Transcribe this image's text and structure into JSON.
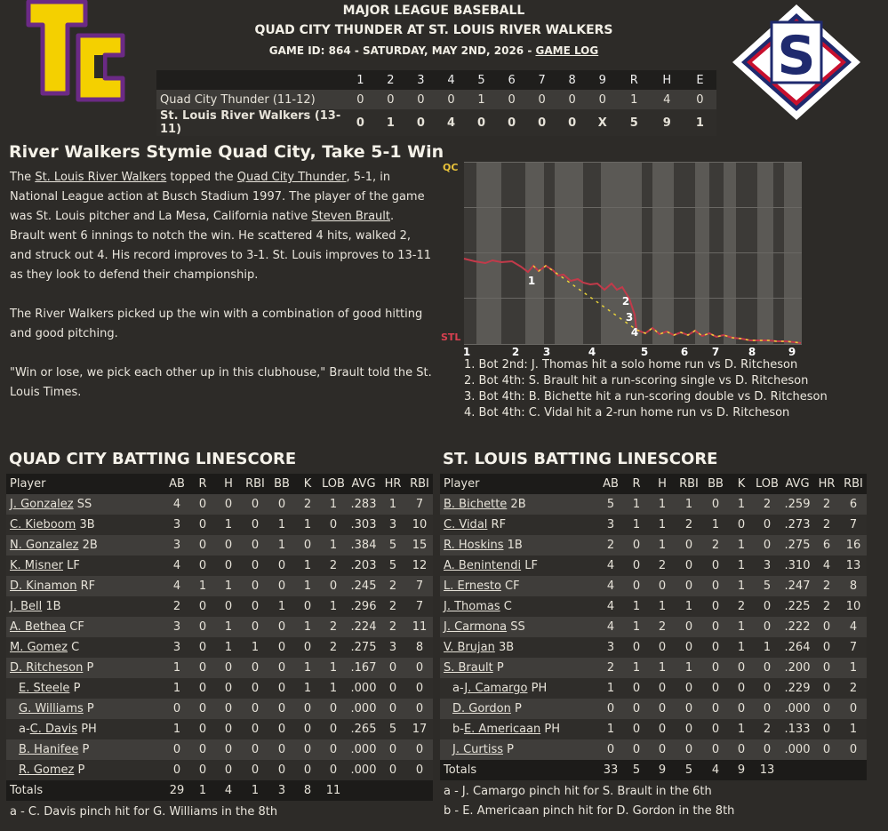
{
  "header": {
    "league": "MAJOR LEAGUE BASEBALL",
    "matchup": "QUAD CITY THUNDER AT ST. LOUIS RIVER WALKERS",
    "game_info": "GAME ID: 864 - SATURDAY, MAY 2ND, 2026 - ",
    "game_log_link": "GAME LOG"
  },
  "logos": {
    "away_letters": "TC",
    "home_letter": "S",
    "colors": {
      "away_primary": "#f4d000",
      "away_outline": "#6b2a85",
      "home_navy": "#1f2a6e",
      "home_red": "#c8102e"
    }
  },
  "linescore": {
    "headers": [
      "",
      "1",
      "2",
      "3",
      "4",
      "5",
      "6",
      "7",
      "8",
      "9",
      "R",
      "H",
      "E"
    ],
    "rows": [
      [
        "Quad City Thunder (11-12)",
        "0",
        "0",
        "0",
        "0",
        "1",
        "0",
        "0",
        "0",
        "0",
        "1",
        "4",
        "0"
      ],
      [
        "St. Louis River Walkers (13-11)",
        "0",
        "1",
        "0",
        "4",
        "0",
        "0",
        "0",
        "0",
        "X",
        "5",
        "9",
        "1"
      ]
    ]
  },
  "article": {
    "title": "River Walkers Stymie Quad City, Take 5-1 Win",
    "p1_a": "The ",
    "p1_link1": "St. Louis River Walkers",
    "p1_b": " topped the ",
    "p1_link2": "Quad City Thunder",
    "p1_c": ", 5-1, in National League action at Busch Stadium 1997. The player of the game was St. Louis pitcher and La Mesa, California native ",
    "p1_link3": "Steven Brault",
    "p1_d": ". Brault went 6 innings to notch the win. He scattered 4 hits, walked 2, and struck out 4. His record improves to 3-1. St. Louis improves to 13-11 as they look to defend their championship.",
    "p2": "The River Walkers picked up the win with a combination of good hitting and good pitching.",
    "p3": "\"Win or lose, we pick each other up in this clubhouse,\" Brault told the St. Louis Times."
  },
  "chart_data": {
    "type": "line",
    "y_top_label": "QC",
    "y_bottom_label": "STL",
    "x_labels": [
      "1",
      "2",
      "3",
      "4",
      "5",
      "6",
      "7",
      "8",
      "9"
    ],
    "markers": [
      "1",
      "2",
      "3",
      "4"
    ],
    "colors": {
      "line_home": "#c23a4a",
      "line_away": "#e8d23a",
      "band": "#5b5955",
      "bg": "#3c3a37"
    }
  },
  "chart_notes": [
    "1. Bot 2nd: J. Thomas hit a solo home run vs D. Ritcheson",
    "2. Bot 4th: S. Brault hit a run-scoring single vs D. Ritcheson",
    "3. Bot 4th: B. Bichette hit a run-scoring double vs D. Ritcheson",
    "4. Bot 4th: C. Vidal hit a 2-run home run vs D. Ritcheson"
  ],
  "qc_batting": {
    "title": "QUAD CITY BATTING LINESCORE",
    "headers": [
      "Player",
      "AB",
      "R",
      "H",
      "RBI",
      "BB",
      "K",
      "LOB",
      "AVG",
      "HR",
      "RBI"
    ],
    "rows": [
      {
        "pre": "",
        "name": "J. Gonzalez",
        "pos": " SS",
        "ind": false,
        "stats": [
          "4",
          "0",
          "0",
          "0",
          "0",
          "2",
          "1",
          ".283",
          "1",
          "7"
        ]
      },
      {
        "pre": "",
        "name": "C. Kieboom",
        "pos": " 3B",
        "ind": false,
        "stats": [
          "3",
          "0",
          "1",
          "0",
          "1",
          "1",
          "0",
          ".303",
          "3",
          "10"
        ]
      },
      {
        "pre": "",
        "name": "N. Gonzalez",
        "pos": " 2B",
        "ind": false,
        "stats": [
          "3",
          "0",
          "0",
          "0",
          "1",
          "0",
          "1",
          ".384",
          "5",
          "15"
        ]
      },
      {
        "pre": "",
        "name": "K. Misner",
        "pos": " LF",
        "ind": false,
        "stats": [
          "4",
          "0",
          "0",
          "0",
          "0",
          "1",
          "2",
          ".203",
          "5",
          "12"
        ]
      },
      {
        "pre": "",
        "name": "D. Kinamon",
        "pos": " RF",
        "ind": false,
        "stats": [
          "4",
          "1",
          "1",
          "0",
          "0",
          "1",
          "0",
          ".245",
          "2",
          "7"
        ]
      },
      {
        "pre": "",
        "name": "J. Bell",
        "pos": " 1B",
        "ind": false,
        "stats": [
          "2",
          "0",
          "0",
          "0",
          "1",
          "0",
          "1",
          ".296",
          "2",
          "7"
        ]
      },
      {
        "pre": "",
        "name": "A. Bethea",
        "pos": " CF",
        "ind": false,
        "stats": [
          "3",
          "0",
          "1",
          "0",
          "0",
          "1",
          "2",
          ".224",
          "2",
          "11"
        ]
      },
      {
        "pre": "",
        "name": "M. Gomez",
        "pos": " C",
        "ind": false,
        "stats": [
          "3",
          "0",
          "1",
          "1",
          "0",
          "0",
          "2",
          ".275",
          "3",
          "8"
        ]
      },
      {
        "pre": "",
        "name": "D. Ritcheson",
        "pos": " P",
        "ind": false,
        "stats": [
          "1",
          "0",
          "0",
          "0",
          "0",
          "1",
          "1",
          ".167",
          "0",
          "0"
        ]
      },
      {
        "pre": "",
        "name": "E. Steele",
        "pos": " P",
        "ind": true,
        "stats": [
          "1",
          "0",
          "0",
          "0",
          "0",
          "1",
          "1",
          ".000",
          "0",
          "0"
        ]
      },
      {
        "pre": "",
        "name": "G. Williams",
        "pos": " P",
        "ind": true,
        "stats": [
          "0",
          "0",
          "0",
          "0",
          "0",
          "0",
          "0",
          ".000",
          "0",
          "0"
        ]
      },
      {
        "pre": "a-",
        "name": "C. Davis",
        "pos": " PH",
        "ind": true,
        "stats": [
          "1",
          "0",
          "0",
          "0",
          "0",
          "0",
          "0",
          ".265",
          "5",
          "17"
        ]
      },
      {
        "pre": "",
        "name": "B. Hanifee",
        "pos": " P",
        "ind": true,
        "stats": [
          "0",
          "0",
          "0",
          "0",
          "0",
          "0",
          "0",
          ".000",
          "0",
          "0"
        ]
      },
      {
        "pre": "",
        "name": "R. Gomez",
        "pos": " P",
        "ind": true,
        "stats": [
          "0",
          "0",
          "0",
          "0",
          "0",
          "0",
          "0",
          ".000",
          "0",
          "0"
        ]
      }
    ],
    "totals": [
      "Totals",
      "29",
      "1",
      "4",
      "1",
      "3",
      "8",
      "11",
      "",
      "",
      ""
    ],
    "footnotes": [
      "a - C. Davis pinch hit for G. Williams in the 8th"
    ]
  },
  "stl_batting": {
    "title": "ST. LOUIS BATTING LINESCORE",
    "headers": [
      "Player",
      "AB",
      "R",
      "H",
      "RBI",
      "BB",
      "K",
      "LOB",
      "AVG",
      "HR",
      "RBI"
    ],
    "rows": [
      {
        "pre": "",
        "name": "B. Bichette",
        "pos": " 2B",
        "ind": false,
        "stats": [
          "5",
          "1",
          "1",
          "1",
          "0",
          "1",
          "2",
          ".259",
          "2",
          "6"
        ]
      },
      {
        "pre": "",
        "name": "C. Vidal",
        "pos": " RF",
        "ind": false,
        "stats": [
          "3",
          "1",
          "1",
          "2",
          "1",
          "0",
          "0",
          ".273",
          "2",
          "7"
        ]
      },
      {
        "pre": "",
        "name": "R. Hoskins",
        "pos": " 1B",
        "ind": false,
        "stats": [
          "2",
          "0",
          "1",
          "0",
          "2",
          "1",
          "0",
          ".275",
          "6",
          "16"
        ]
      },
      {
        "pre": "",
        "name": "A. Benintendi",
        "pos": " LF",
        "ind": false,
        "stats": [
          "4",
          "0",
          "2",
          "0",
          "0",
          "1",
          "3",
          ".310",
          "4",
          "13"
        ]
      },
      {
        "pre": "",
        "name": "L. Ernesto",
        "pos": " CF",
        "ind": false,
        "stats": [
          "4",
          "0",
          "0",
          "0",
          "0",
          "1",
          "5",
          ".247",
          "2",
          "8"
        ]
      },
      {
        "pre": "",
        "name": "J. Thomas",
        "pos": " C",
        "ind": false,
        "stats": [
          "4",
          "1",
          "1",
          "1",
          "0",
          "2",
          "0",
          ".225",
          "2",
          "10"
        ]
      },
      {
        "pre": "",
        "name": "J. Carmona",
        "pos": " SS",
        "ind": false,
        "stats": [
          "4",
          "1",
          "2",
          "0",
          "0",
          "1",
          "0",
          ".222",
          "0",
          "4"
        ]
      },
      {
        "pre": "",
        "name": "V. Brujan",
        "pos": " 3B",
        "ind": false,
        "stats": [
          "3",
          "0",
          "0",
          "0",
          "0",
          "1",
          "1",
          ".264",
          "0",
          "7"
        ]
      },
      {
        "pre": "",
        "name": "S. Brault",
        "pos": " P",
        "ind": false,
        "stats": [
          "2",
          "1",
          "1",
          "1",
          "0",
          "0",
          "0",
          ".200",
          "0",
          "1"
        ]
      },
      {
        "pre": "a-",
        "name": "J. Camargo",
        "pos": " PH",
        "ind": true,
        "stats": [
          "1",
          "0",
          "0",
          "0",
          "0",
          "0",
          "0",
          ".229",
          "0",
          "2"
        ]
      },
      {
        "pre": "",
        "name": "D. Gordon",
        "pos": " P",
        "ind": true,
        "stats": [
          "0",
          "0",
          "0",
          "0",
          "0",
          "0",
          "0",
          ".000",
          "0",
          "0"
        ]
      },
      {
        "pre": "b-",
        "name": "E. Americaan",
        "pos": " PH",
        "ind": true,
        "stats": [
          "1",
          "0",
          "0",
          "0",
          "0",
          "1",
          "2",
          ".133",
          "0",
          "1"
        ]
      },
      {
        "pre": "",
        "name": "J. Curtiss",
        "pos": " P",
        "ind": true,
        "stats": [
          "0",
          "0",
          "0",
          "0",
          "0",
          "0",
          "0",
          ".000",
          "0",
          "0"
        ]
      }
    ],
    "totals": [
      "Totals",
      "33",
      "5",
      "9",
      "5",
      "4",
      "9",
      "13",
      "",
      "",
      ""
    ],
    "footnotes": [
      "a - J. Camargo pinch hit for S. Brault in the 6th",
      "b - E. Americaan pinch hit for D. Gordon in the 8th"
    ]
  }
}
